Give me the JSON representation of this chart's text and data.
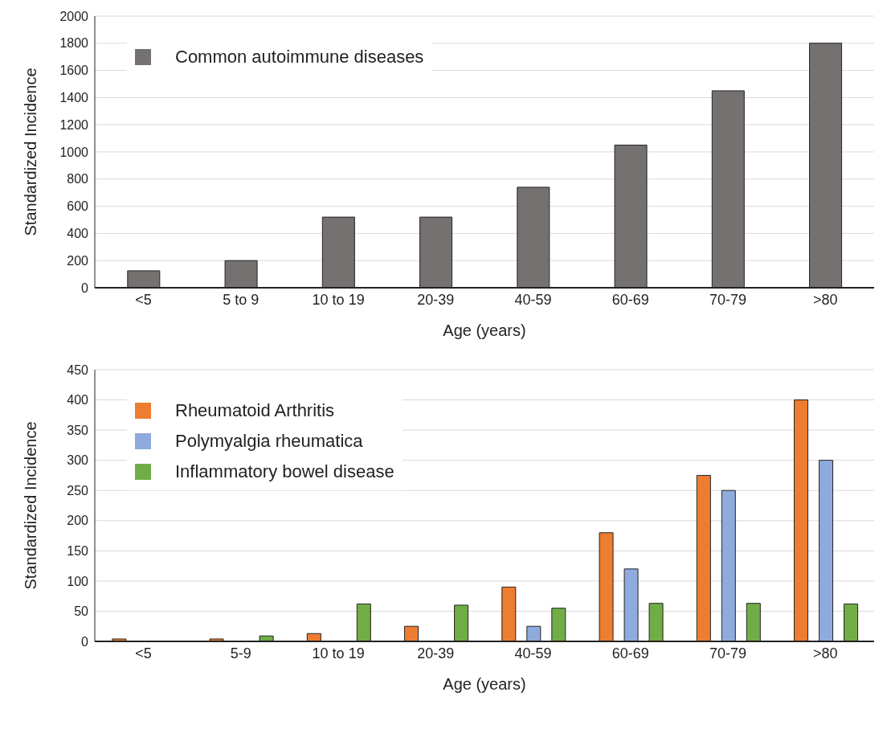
{
  "chart_data": [
    {
      "type": "bar",
      "xlabel": "Age (years)",
      "ylabel": "Standardized Incidence",
      "categories": [
        "<5",
        "5 to 9",
        "10 to 19",
        "20-39",
        "40-59",
        "60-69",
        "70-79",
        ">80"
      ],
      "series": [
        {
          "name": "Common autoimmune diseases",
          "color": "#767171",
          "values": [
            125,
            200,
            520,
            520,
            740,
            1050,
            1450,
            1800
          ]
        }
      ],
      "ylim": [
        0,
        2000
      ],
      "yticks": [
        0,
        200,
        400,
        600,
        800,
        1000,
        1200,
        1400,
        1600,
        1800,
        2000
      ],
      "grid": "y",
      "legend": "top left"
    },
    {
      "type": "bar",
      "xlabel": "Age (years)",
      "ylabel": "Standardized Incidence",
      "categories": [
        "<5",
        "5-9",
        "10 to 19",
        "20-39",
        "40-59",
        "60-69",
        "70-79",
        ">80"
      ],
      "series": [
        {
          "name": "Rheumatoid Arthritis",
          "color": "#ed7d31",
          "values": [
            4,
            4,
            13,
            25,
            90,
            180,
            275,
            400
          ]
        },
        {
          "name": "Polymyalgia rheumatica",
          "color": "#8faadc",
          "values": [
            0,
            0,
            0,
            0,
            25,
            120,
            250,
            300
          ]
        },
        {
          "name": "Inflammatory bowel disease",
          "color": "#70ad47",
          "values": [
            0,
            9,
            62,
            60,
            55,
            63,
            63,
            62
          ]
        }
      ],
      "ylim": [
        0,
        450
      ],
      "yticks": [
        0,
        50,
        100,
        150,
        200,
        250,
        300,
        350,
        400,
        450
      ],
      "grid": "y",
      "legend": "top left"
    }
  ]
}
